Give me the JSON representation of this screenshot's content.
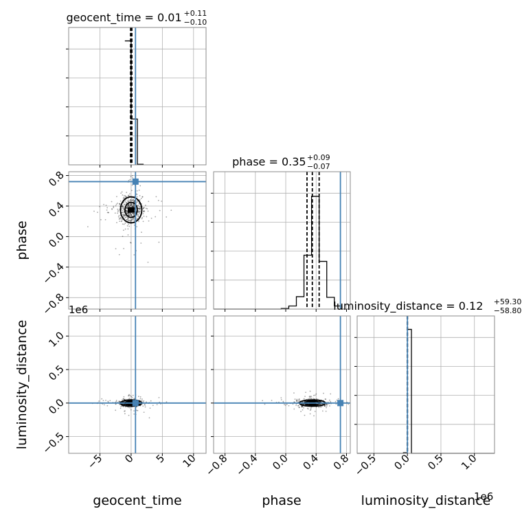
{
  "chart_data": {
    "type": "corner",
    "parameters": [
      "geocent_time",
      "phase",
      "luminosity_distance"
    ],
    "axis_labels": {
      "geocent_time": "geocent_time",
      "phase": "phase",
      "luminosity_distance": "luminosity_distance"
    },
    "ranges": {
      "geocent_time": [
        -10,
        12
      ],
      "phase": [
        -0.95,
        0.85
      ],
      "luminosity_distance": [
        -0.75,
        1.3
      ]
    },
    "ticks": {
      "geocent_time": [
        -5,
        0,
        5,
        10
      ],
      "phase": [
        -0.8,
        -0.4,
        0.0,
        0.4,
        0.8
      ],
      "luminosity_distance": [
        -0.5,
        0.0,
        0.5,
        1.0
      ]
    },
    "tick_labels": {
      "geocent_time": [
        "−5",
        "0",
        "5",
        "10"
      ],
      "phase": [
        "−0.8",
        "−0.4",
        "0.0",
        "0.4",
        "0.8"
      ],
      "luminosity_distance": [
        "−0.5",
        "0.0",
        "0.5",
        "1.0"
      ]
    },
    "offset_text": "1e6",
    "truths": {
      "geocent_time": 0.7,
      "phase": 0.72,
      "luminosity_distance": 0.0
    },
    "titles": {
      "geocent_time": {
        "main": "geocent_time = 0.01",
        "plus": "+0.11",
        "minus": "−0.10"
      },
      "phase": {
        "main": "phase = 0.35",
        "plus": "+0.09",
        "minus": "−0.07"
      },
      "luminosity_distance": {
        "main": "luminosity_distance = 0.12",
        "plus": "+59.30",
        "minus": "−58.80"
      }
    },
    "quantiles": {
      "geocent_time": [
        -0.09,
        0.01,
        0.12
      ],
      "phase": [
        0.28,
        0.35,
        0.44
      ],
      "luminosity_distance": [
        -5.88e-05,
        1.2e-07,
        5.93e-05
      ]
    },
    "histograms": {
      "geocent_time": {
        "edges": [
          -1.0,
          0.0,
          1.0,
          2.0
        ],
        "counts": [
          1.0,
          0.37,
          0.005
        ]
      },
      "phase": {
        "edges": [
          -0.95,
          -0.06,
          0.04,
          0.14,
          0.24,
          0.34,
          0.44,
          0.54,
          0.64,
          0.74,
          0.85
        ],
        "counts": [
          0.0,
          0.005,
          0.025,
          0.1,
          0.435,
          0.91,
          0.385,
          0.095,
          0.025,
          0.0
        ]
      },
      "luminosity_distance": {
        "edges": [
          -0.75,
          -0.06,
          0.0,
          0.06,
          1.3
        ],
        "counts": [
          0.0,
          0.005,
          1.0,
          0.0
        ]
      }
    },
    "grid": true
  }
}
